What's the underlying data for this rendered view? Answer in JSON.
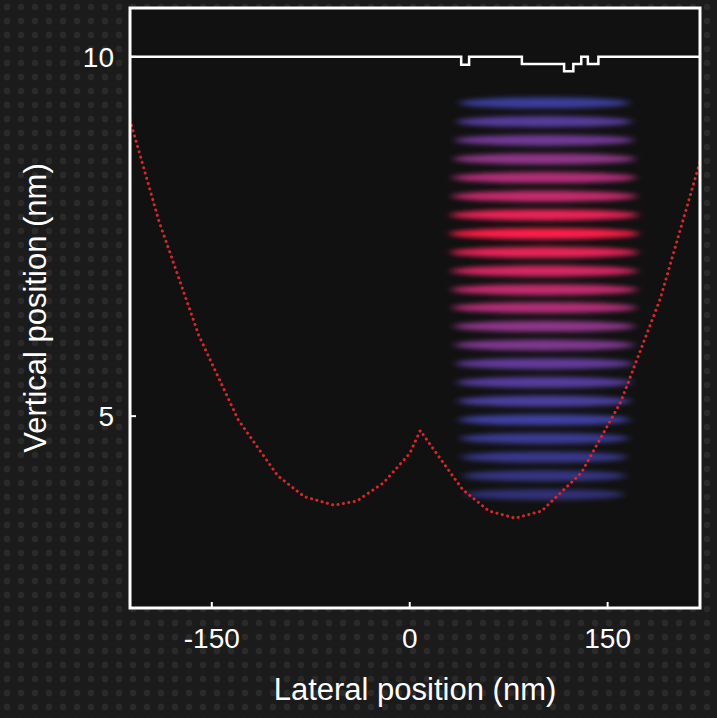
{
  "chart_data": {
    "type": "line",
    "xlabel": "Lateral position (nm)",
    "ylabel": "Vertical position (nm)",
    "xlim": [
      -212,
      220
    ],
    "ylim": [
      2.33,
      10.68
    ],
    "xticks": [
      -150,
      0,
      150
    ],
    "yticks": [
      5,
      10
    ],
    "grid": false,
    "series": [
      {
        "color": "#d8262c",
        "line_style": "dotted",
        "x": [
          -212,
          -190,
          -160,
          -130,
          -100,
          -80,
          -57,
          -40,
          -20,
          0,
          8,
          20,
          40,
          60,
          80,
          100,
          130,
          160,
          190,
          220
        ],
        "values": [
          9.12,
          7.71,
          6.13,
          4.95,
          4.17,
          3.88,
          3.76,
          3.82,
          4.07,
          4.48,
          4.8,
          4.49,
          3.98,
          3.68,
          3.58,
          3.68,
          4.21,
          5.2,
          6.64,
          8.54
        ]
      },
      {
        "color": "#ffffff",
        "line_style": "solid",
        "x": [
          -212,
          39,
          39,
          45,
          45,
          85,
          85,
          117,
          117,
          124,
          124,
          130,
          130,
          135,
          135,
          143,
          143,
          220
        ],
        "values": [
          10,
          10,
          9.89,
          9.89,
          10,
          10,
          9.9,
          9.9,
          9.8,
          9.8,
          9.9,
          9.9,
          10,
          10,
          9.9,
          9.9,
          10,
          10
        ]
      }
    ],
    "density": {
      "x_range": [
        30,
        174
      ],
      "colors": [
        "#5b5cff",
        "#ff1f4a"
      ],
      "y": [
        9.36,
        9.1,
        8.84,
        8.58,
        8.32,
        8.06,
        7.8,
        7.54,
        7.28,
        7.02,
        6.76,
        6.51,
        6.25,
        5.99,
        5.73,
        5.47,
        5.21,
        4.95,
        4.69,
        4.43,
        4.17,
        3.91
      ],
      "intensity": [
        0.35,
        0.5,
        0.6,
        0.7,
        0.8,
        0.85,
        0.95,
        1.0,
        0.95,
        0.9,
        0.85,
        0.8,
        0.7,
        0.65,
        0.55,
        0.5,
        0.45,
        0.4,
        0.3,
        0.25,
        0.2,
        0.12
      ]
    }
  }
}
